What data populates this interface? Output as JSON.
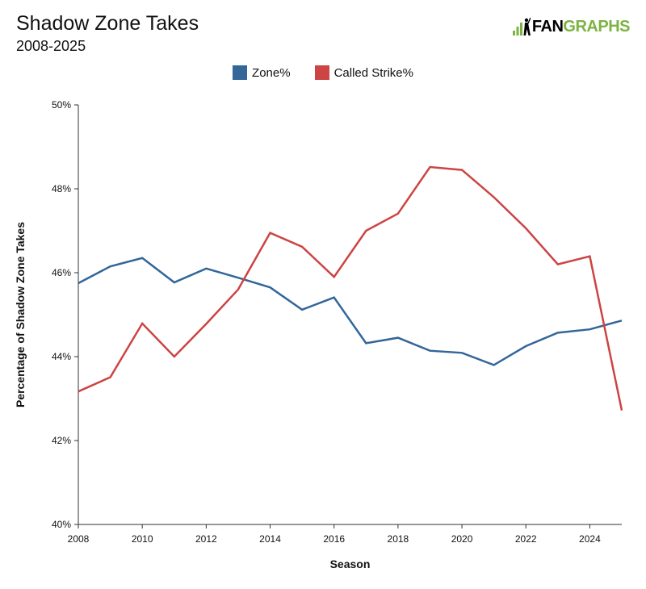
{
  "header": {
    "title": "Shadow Zone Takes",
    "subtitle": "2008-2025"
  },
  "logo": {
    "text_fan": "FAN",
    "text_graphs": "GRAPHS",
    "fan_color": "#000000",
    "graphs_color": "#7cb342",
    "icon": "fangraphs-bars-and-batter-icon"
  },
  "chart_data": {
    "type": "line",
    "title": "Shadow Zone Takes",
    "subtitle": "2008-2025",
    "xlabel": "Season",
    "ylabel": "Percentage of Shadow Zone Takes",
    "x": [
      2008,
      2009,
      2010,
      2011,
      2012,
      2013,
      2014,
      2015,
      2016,
      2017,
      2018,
      2019,
      2020,
      2021,
      2022,
      2023,
      2024,
      2025
    ],
    "xlim": [
      2008,
      2025
    ],
    "ylim": [
      40,
      50
    ],
    "x_ticks": [
      "2008",
      "2010",
      "2012",
      "2014",
      "2016",
      "2018",
      "2020",
      "2022",
      "2024"
    ],
    "y_ticks": [
      "40%",
      "42%",
      "44%",
      "46%",
      "48%",
      "50%"
    ],
    "grid": false,
    "legend_position": "top-center",
    "series": [
      {
        "name": "Zone%",
        "color": "#336699",
        "values": [
          45.75,
          46.15,
          46.35,
          45.77,
          46.1,
          45.88,
          45.65,
          45.12,
          45.41,
          44.32,
          44.45,
          44.14,
          44.09,
          43.8,
          44.25,
          44.57,
          44.65,
          44.86
        ]
      },
      {
        "name": "Called Strike%",
        "color": "#cc4444",
        "values": [
          43.17,
          43.51,
          44.79,
          44.0,
          44.78,
          45.6,
          46.95,
          46.62,
          45.9,
          47.0,
          47.41,
          48.52,
          48.45,
          47.8,
          47.06,
          46.2,
          46.39,
          42.72
        ]
      }
    ]
  }
}
